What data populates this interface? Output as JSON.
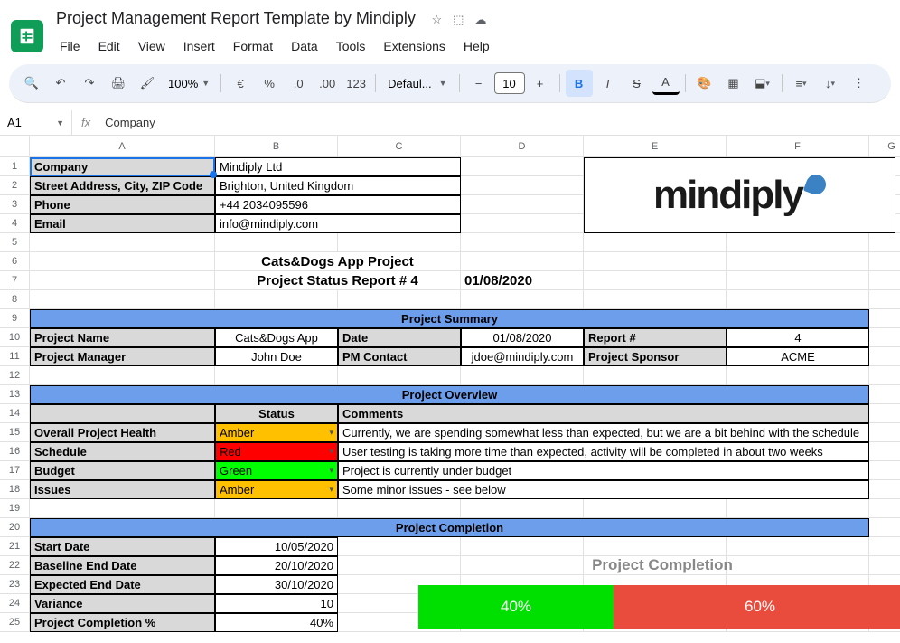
{
  "doc": {
    "title": "Project Management Report Template by Mindiply"
  },
  "menu": [
    "File",
    "Edit",
    "View",
    "Insert",
    "Format",
    "Data",
    "Tools",
    "Extensions",
    "Help"
  ],
  "toolbar": {
    "zoom": "100%",
    "font": "Defaul...",
    "fontsize": "10"
  },
  "namebox": "A1",
  "formula": "Company",
  "cols": {
    "A": 205,
    "B": 136,
    "C": 136,
    "D": 136,
    "E": 158,
    "F": 158,
    "G": 50
  },
  "company": {
    "labels": [
      "Company",
      "Street Address, City, ZIP Code",
      "Phone",
      "Email"
    ],
    "values": [
      "Mindiply Ltd",
      "Brighton, United Kingdom",
      "+44 2034095596",
      "info@mindiply.com"
    ]
  },
  "logo_text": "mindiply",
  "project_title": "Cats&Dogs App Project",
  "report_line": "Project Status Report # 4",
  "report_date": "01/08/2020",
  "sections": {
    "summary": "Project Summary",
    "overview": "Project Overview",
    "completion": "Project Completion"
  },
  "summary": {
    "r1": {
      "l1": "Project Name",
      "v1": "Cats&Dogs App",
      "l2": "Date",
      "v2": "01/08/2020",
      "l3": "Report #",
      "v3": "4"
    },
    "r2": {
      "l1": "Project Manager",
      "v1": "John Doe",
      "l2": "PM Contact",
      "v2": "jdoe@mindiply.com",
      "l3": "Project Sponsor",
      "v3": "ACME"
    }
  },
  "overview": {
    "hdr_status": "Status",
    "hdr_comments": "Comments",
    "rows": [
      {
        "label": "Overall Project Health",
        "status": "Amber",
        "status_color": "#ffc000",
        "comment": "Currently, we are spending somewhat less than expected, but we are a bit behind with the schedule"
      },
      {
        "label": "Schedule",
        "status": "Red",
        "status_color": "#ff0000",
        "comment": "User testing is taking more time than expected, activity will be completed in about two weeks"
      },
      {
        "label": "Budget",
        "status": "Green",
        "status_color": "#00ff00",
        "comment": "Project is currently under budget"
      },
      {
        "label": "Issues",
        "status": "Amber",
        "status_color": "#ffc000",
        "comment": "Some minor issues - see below"
      }
    ]
  },
  "completion": {
    "rows": [
      {
        "label": "Start Date",
        "value": "10/05/2020"
      },
      {
        "label": "Baseline End Date",
        "value": "20/10/2020"
      },
      {
        "label": "Expected End Date",
        "value": "30/10/2020"
      },
      {
        "label": "Variance",
        "value": "10"
      },
      {
        "label": "Project Completion %",
        "value": "40%"
      }
    ],
    "chart": {
      "title": "Project Completion",
      "seg1": {
        "label": "40%",
        "pct": 40,
        "color": "#00e000"
      },
      "seg2": {
        "label": "60%",
        "pct": 60,
        "color": "#e94b3c"
      }
    }
  }
}
